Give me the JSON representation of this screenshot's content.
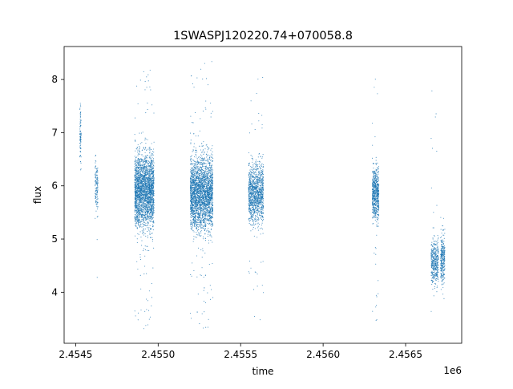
{
  "chart_data": {
    "type": "scatter",
    "title": "1SWASPJ120220.74+070058.8",
    "xlabel": "time",
    "ylabel": "flux",
    "x_offset_label": "1e6",
    "xlim": [
      2454430,
      2456840
    ],
    "ylim": [
      3.04,
      8.62
    ],
    "xticks": [
      {
        "value": 2454500,
        "label": "2.4545"
      },
      {
        "value": 2455000,
        "label": "2.4550"
      },
      {
        "value": 2455500,
        "label": "2.4555"
      },
      {
        "value": 2456000,
        "label": "2.4560"
      },
      {
        "value": 2456500,
        "label": "2.4565"
      }
    ],
    "yticks": [
      {
        "value": 4,
        "label": "4"
      },
      {
        "value": 5,
        "label": "5"
      },
      {
        "value": 6,
        "label": "6"
      },
      {
        "value": 7,
        "label": "7"
      },
      {
        "value": 8,
        "label": "8"
      }
    ],
    "grid": false,
    "legend": "none",
    "marker_color": "#1f77b4",
    "series": [
      {
        "segments": [
          {
            "x_start": 2454525,
            "x_end": 2454533,
            "y_center": 6.95,
            "y_spread": 0.28,
            "y_min": 6.3,
            "y_max": 7.65,
            "n": 90
          },
          {
            "x_start": 2454618,
            "x_end": 2454635,
            "y_center": 6.0,
            "y_spread": 0.25,
            "y_min": 4.25,
            "y_max": 6.65,
            "n": 130
          },
          {
            "x_start": 2454858,
            "x_end": 2454975,
            "y_center": 5.9,
            "y_spread": 0.33,
            "y_min": 3.3,
            "y_max": 8.3,
            "n": 2600
          },
          {
            "x_start": 2455195,
            "x_end": 2455332,
            "y_center": 5.85,
            "y_spread": 0.33,
            "y_min": 3.25,
            "y_max": 8.35,
            "n": 2800
          },
          {
            "x_start": 2455548,
            "x_end": 2455638,
            "y_center": 5.85,
            "y_spread": 0.27,
            "y_min": 3.4,
            "y_max": 8.05,
            "n": 1200
          },
          {
            "x_start": 2456298,
            "x_end": 2456338,
            "y_center": 5.85,
            "y_spread": 0.23,
            "y_min": 3.4,
            "y_max": 8.15,
            "n": 650
          },
          {
            "x_start": 2456655,
            "x_end": 2456700,
            "y_center": 4.55,
            "y_spread": 0.2,
            "y_min": 3.3,
            "y_max": 8.2,
            "n": 420
          },
          {
            "x_start": 2456712,
            "x_end": 2456738,
            "y_center": 4.65,
            "y_spread": 0.22,
            "y_min": 3.8,
            "y_max": 5.5,
            "n": 280
          }
        ]
      }
    ]
  }
}
